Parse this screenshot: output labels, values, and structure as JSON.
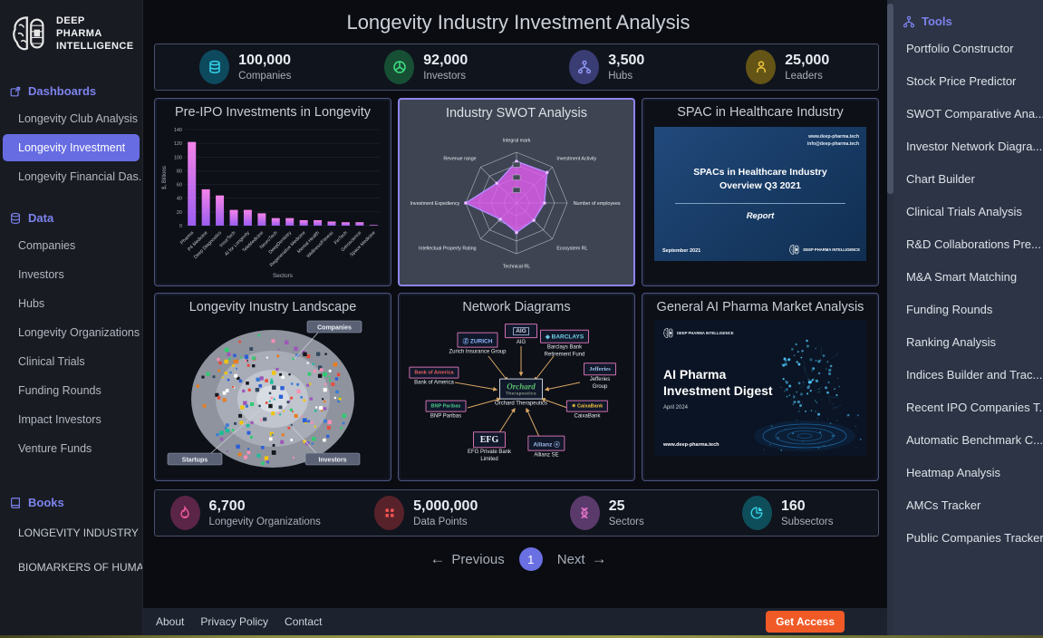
{
  "brand": {
    "name_lines": [
      "DEEP",
      "PHARMA",
      "INTELLIGENCE"
    ]
  },
  "header": {
    "title": "Longevity Industry Investment Analysis"
  },
  "sidebar_left": {
    "dashboards": {
      "label": "Dashboards",
      "items": [
        "Longevity Club Analysis",
        "Longevity Investment",
        "Longevity Financial Das..."
      ],
      "active_item": "Longevity Investment"
    },
    "data": {
      "label": "Data",
      "items": [
        "Companies",
        "Investors",
        "Hubs",
        "Longevity Organizations",
        "Clinical Trials",
        "Funding Rounds",
        "Impact Investors",
        "Venture Funds"
      ]
    },
    "books": {
      "label": "Books",
      "items": [
        "LONGEVITY INDUSTRY ...",
        "BIOMARKERS OF HUMA..."
      ]
    }
  },
  "sidebar_right": {
    "header": "Tools",
    "items": [
      "Portfolio Constructor",
      "Stock Price Predictor",
      "SWOT Comparative Ana...",
      "Investor Network Diagra...",
      "Chart Builder",
      "Clinical Trials Analysis",
      "R&D Collaborations Pre...",
      "M&A Smart Matching",
      "Funding Rounds",
      "Ranking Analysis",
      "Indices Builder and Trac...",
      "Recent IPO Companies T...",
      "Automatic Benchmark C...",
      "Heatmap Analysis",
      "AMCs Tracker",
      "Public Companies Tracker"
    ]
  },
  "stats_top": [
    {
      "value": "100,000",
      "label": "Companies",
      "icon": "database-icon",
      "color": "#35d3ee",
      "bg": "#0d4a5e"
    },
    {
      "value": "92,000",
      "label": "Investors",
      "icon": "investors-icon",
      "color": "#41df84",
      "bg": "#174f35"
    },
    {
      "value": "3,500",
      "label": "Hubs",
      "icon": "hub-network-icon",
      "color": "#939bf7",
      "bg": "#3a3d74"
    },
    {
      "value": "25,000",
      "label": "Leaders",
      "icon": "person-icon",
      "color": "#eec73c",
      "bg": "#645415"
    }
  ],
  "stats_bottom": [
    {
      "value": "6,700",
      "label": "Longevity Organizations",
      "icon": "flame-icon",
      "color": "#f25c9e",
      "bg": "#5a2547"
    },
    {
      "value": "5,000,000",
      "label": "Data Points",
      "icon": "grid-icon",
      "color": "#ef5350",
      "bg": "#58222b"
    },
    {
      "value": "25",
      "label": "Sectors",
      "icon": "dna-icon",
      "color": "#f07ad2",
      "bg": "#5a3a6b"
    },
    {
      "value": "160",
      "label": "Subsectors",
      "icon": "pie-chart-icon",
      "color": "#38d4e8",
      "bg": "#0e4e5a"
    }
  ],
  "cards": {
    "pre_ipo": {
      "title": "Pre-IPO Investments in Longevity"
    },
    "swot": {
      "title": "Industry SWOT Analysis"
    },
    "spac": {
      "title": "SPAC in Healthcare Industry",
      "slide": {
        "site": "www.deep-pharma.tech",
        "email": "info@deep-pharma.tech",
        "heading1": "SPACs in Healthcare Industry",
        "heading2": "Overview Q3 2021",
        "subtitle": "Report",
        "date": "September 2021",
        "brand": "DEEP PHARMA INTELLIGENCE"
      }
    },
    "landscape": {
      "title": "Longevity Inustry Landscape",
      "labels": {
        "companies": "Companies",
        "startups": "Startups",
        "investors": "Investors"
      }
    },
    "network": {
      "title": "Network Diagrams",
      "center": {
        "logo": "Orchard",
        "logo_sub": "Therapeutics",
        "name": "Orchard Therapeutics"
      },
      "nodes": [
        {
          "logo": "Ⓩ ZURICH",
          "name": "Zurich Insurance Group"
        },
        {
          "logo": "AIG",
          "name": "AIG"
        },
        {
          "logo": "◈ BARCLAYS",
          "name": "Barclays Bank Retirement Fund"
        },
        {
          "logo": "Bank of America",
          "name": "Bank of America"
        },
        {
          "logo": "Jefferies",
          "name": "Jefferies Group"
        },
        {
          "logo": "BNP Paribas",
          "name": "BNP Paribas"
        },
        {
          "logo": "✷ CaixaBank",
          "name": "CaixaBank"
        },
        {
          "logo": "EFG",
          "name": "EFG Private Bank Limited"
        },
        {
          "logo": "Allianz ⓐ",
          "name": "Allianz SE"
        }
      ]
    },
    "ai_pharma": {
      "title": "General AI Pharma Market Analysis",
      "slide": {
        "title1": "AI Pharma",
        "title2": "Investment Digest",
        "date": "April 2024",
        "site": "www.deep-pharma.tech",
        "brand": "DEEP PHARMA INTELLIGENCE"
      }
    }
  },
  "chart_data": [
    {
      "type": "bar",
      "title": "Pre-IPO Investments in Longevity",
      "categories": [
        "Pharma",
        "P4 Medicine",
        "Deep Diagnostics",
        "InsurTech",
        "AI for Longevity",
        "TeleMedicine",
        "NeuroTech",
        "DeepDentistry",
        "Regenerative Medicine",
        "Mental Health",
        "Wellness/Fitness",
        "FinTech",
        "Geroscience",
        "Space Medicine"
      ],
      "values": [
        122,
        53,
        44,
        23,
        23,
        18,
        11,
        11,
        8,
        8,
        6,
        5,
        5,
        1
      ],
      "xlabel": "Sectors",
      "ylabel": "$, Billions",
      "ylim": [
        0,
        140
      ],
      "ytick_step": 20,
      "bar_colors": [
        "#f583e8",
        "#9b5df0"
      ],
      "grid": true,
      "legend": false
    },
    {
      "type": "radar",
      "title": "Industry SWOT Analysis",
      "axes": [
        "Integral mark",
        "Investment Activity",
        "Number of employees",
        "Ecosystem RL",
        "Technical RL",
        "Intellectual Property Rating",
        "Investment Expediency",
        "Revenue range"
      ],
      "values": [
        0.82,
        0.85,
        0.55,
        0.48,
        0.58,
        0.45,
        1.0,
        0.55
      ],
      "scale": [
        0,
        1
      ],
      "rings": [
        0.25,
        0.5,
        0.75,
        1.0
      ],
      "fill": "#e35ef2",
      "stroke": "#b18cff",
      "legend": false
    }
  ],
  "pagination": {
    "prev_icon": "←",
    "previous": "Previous",
    "current": "1",
    "next": "Next",
    "next_icon": "→"
  },
  "footer": {
    "links": [
      "About",
      "Privacy Policy",
      "Contact"
    ],
    "cta": "Get Access"
  },
  "colors": {
    "accent_purple": "#676ce2",
    "cta_orange": "#f05a26",
    "section_header": "#7d83ee"
  }
}
